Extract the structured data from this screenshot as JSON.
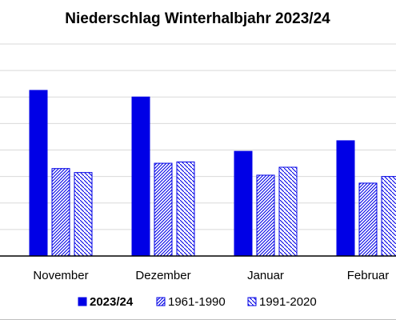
{
  "chart_data": {
    "type": "bar",
    "title": "Niederschlag Winterhalbjahr 2023/24",
    "xlabel": "",
    "ylabel": "",
    "categories": [
      "November",
      "Dezember",
      "Januar",
      "Februar"
    ],
    "series": [
      {
        "name": "2023/24",
        "values": [
          125,
          120,
          79,
          87
        ],
        "color": "#0000e6",
        "pattern": "solid",
        "legend_bold": true
      },
      {
        "name": "1961-1990",
        "values": [
          66,
          70,
          61,
          55
        ],
        "color": "#0000e6",
        "pattern": "dense-hatch",
        "legend_bold": false
      },
      {
        "name": "1991-2020",
        "values": [
          63,
          71,
          67,
          60
        ],
        "color": "#0000e6",
        "pattern": "sparse-hatch",
        "legend_bold": false
      }
    ],
    "ylim": [
      0,
      160
    ],
    "y_gridlines": [
      0,
      20,
      40,
      60,
      80,
      100,
      120,
      140,
      160
    ],
    "grid": true,
    "legend_position": "bottom"
  }
}
